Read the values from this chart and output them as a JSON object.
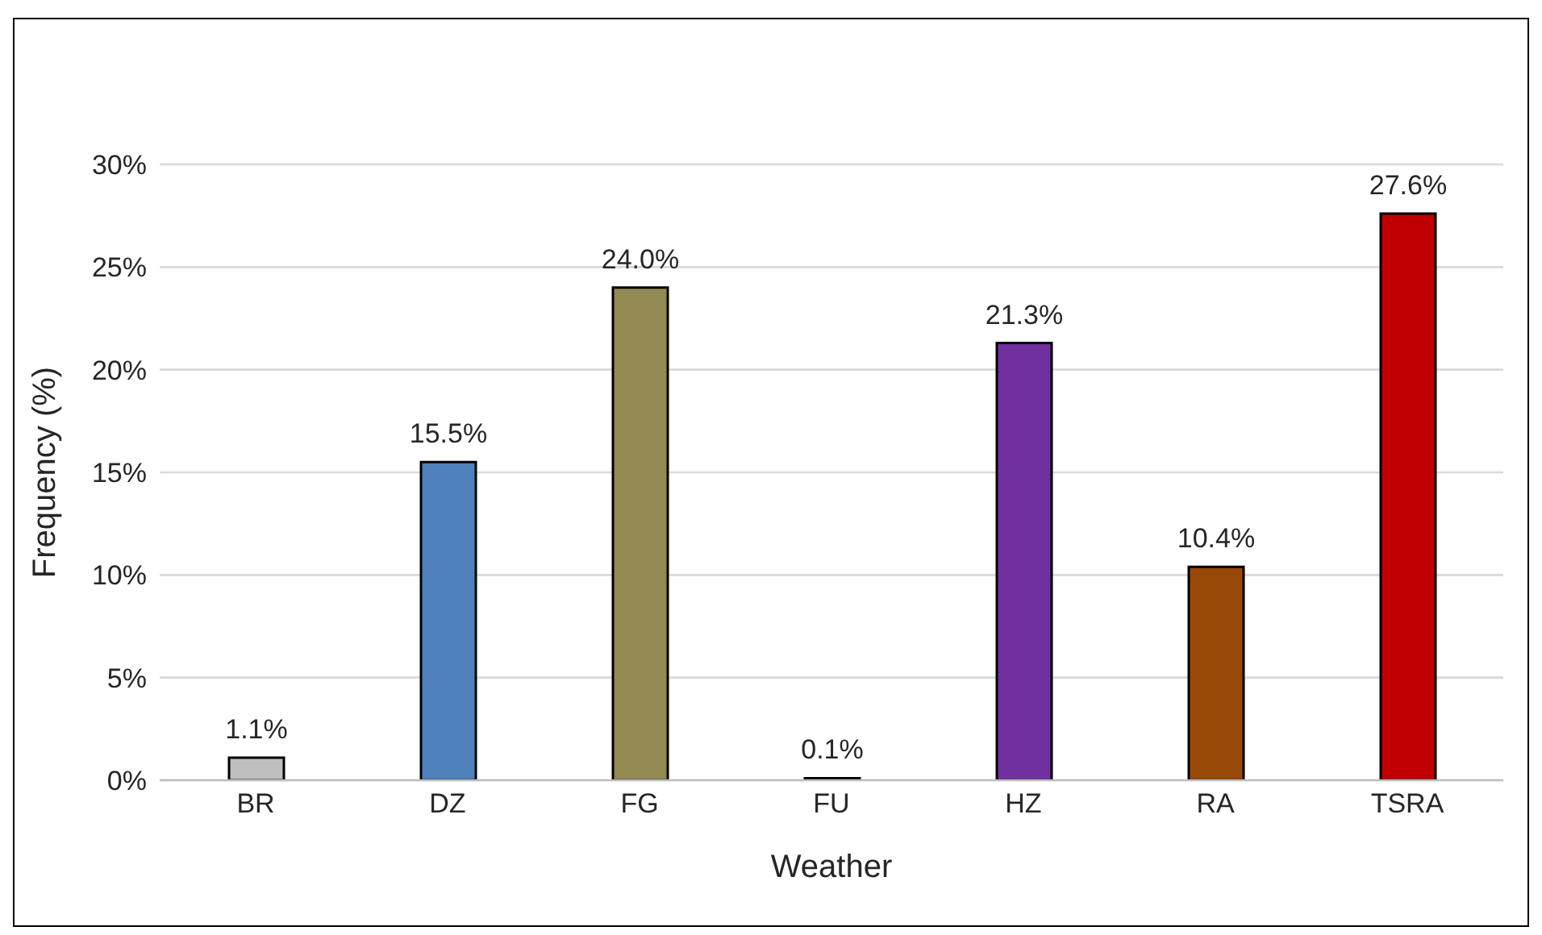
{
  "chart_data": {
    "type": "bar",
    "xlabel": "Weather",
    "ylabel": "Frequency (%)",
    "categories": [
      "BR",
      "DZ",
      "FG",
      "FU",
      "HZ",
      "RA",
      "TSRA"
    ],
    "values": [
      1.1,
      15.5,
      24.0,
      0.1,
      21.3,
      10.4,
      27.6
    ],
    "colors": [
      "#bfbfbf",
      "#4f81bd",
      "#948a54",
      "#262626",
      "#7030a0",
      "#984807",
      "#c00000"
    ],
    "value_labels": [
      "1.1%",
      "15.5%",
      "24.0%",
      "0.1%",
      "21.3%",
      "10.4%",
      "27.6%"
    ],
    "ylim": [
      0,
      30
    ],
    "yticks": [
      {
        "value": 0,
        "label": "0%"
      },
      {
        "value": 5,
        "label": "5%"
      },
      {
        "value": 10,
        "label": "10%"
      },
      {
        "value": 15,
        "label": "15%"
      },
      {
        "value": 20,
        "label": "20%"
      },
      {
        "value": 25,
        "label": "25%"
      },
      {
        "value": 30,
        "label": "30%"
      }
    ],
    "grid": "y"
  }
}
